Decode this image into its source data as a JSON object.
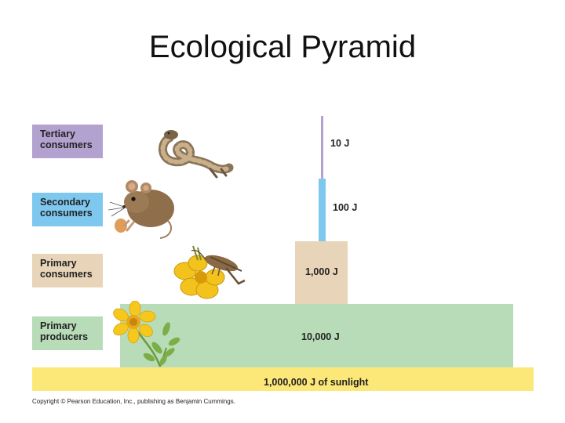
{
  "title": "Ecological Pyramid",
  "levels": [
    {
      "label": "Tertiary\nconsumers",
      "energy": "10 J",
      "color": "#b3a2cf"
    },
    {
      "label": "Secondary\nconsumers",
      "energy": "100 J",
      "color": "#7ec8f0"
    },
    {
      "label": "Primary\nconsumers",
      "energy": "1,000 J",
      "color": "#e8d4b8"
    },
    {
      "label": "Primary\nproducers",
      "energy": "10,000 J",
      "color": "#b8dcb8"
    }
  ],
  "sunlight": {
    "label": "1,000,000 J of sunlight",
    "color": "#fce878"
  },
  "copyright": "Copyright © Pearson Education, Inc., publishing as Benjamin Cummings.",
  "icons": {
    "tertiary": "snake-icon",
    "secondary": "mouse-icon",
    "primary_consumer": "grasshopper-icon",
    "producer": "flower-plant-icon"
  }
}
